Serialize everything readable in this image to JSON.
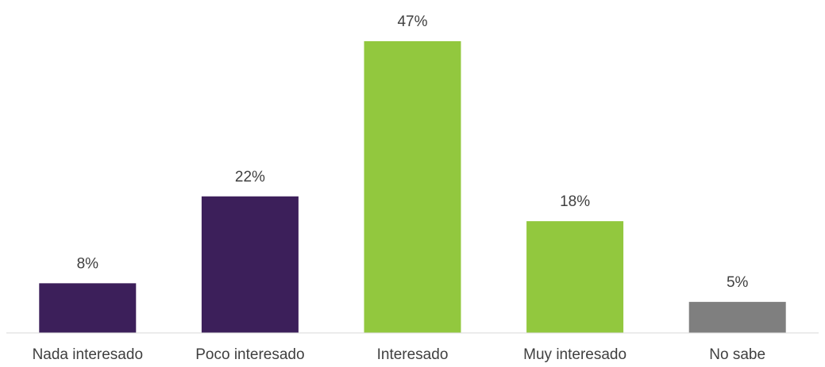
{
  "chart_data": {
    "type": "bar",
    "categories": [
      "Nada interesado",
      "Poco interesado",
      "Interesado",
      "Muy interesado",
      "No sabe"
    ],
    "values": [
      8,
      22,
      47,
      18,
      5
    ],
    "value_labels": [
      "8%",
      "22%",
      "47%",
      "18%",
      "5%"
    ],
    "colors": [
      "#3c1f5a",
      "#3c1f5a",
      "#92c83e",
      "#92c83e",
      "#7f7f7f"
    ]
  }
}
